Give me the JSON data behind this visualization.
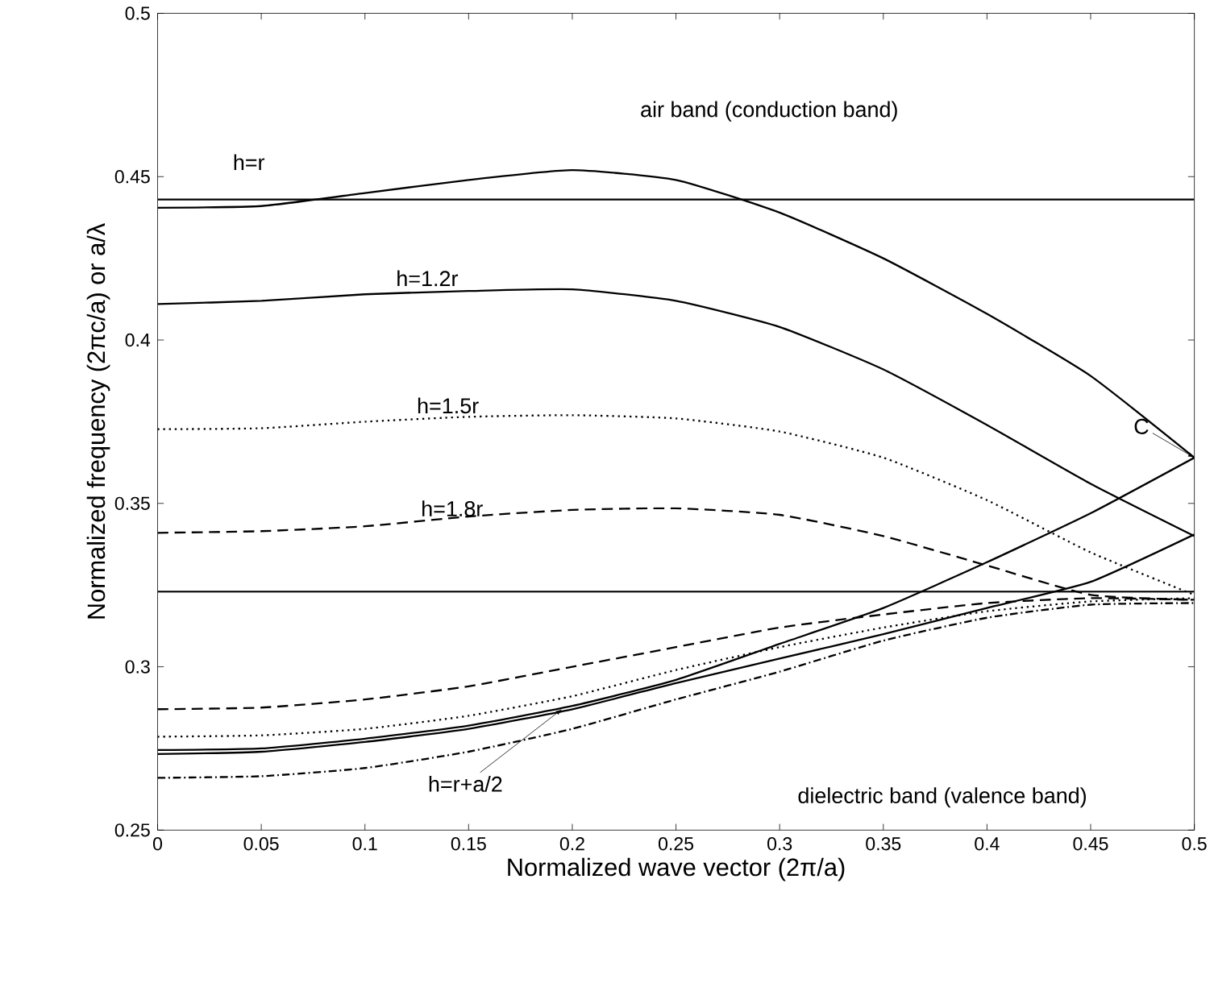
{
  "chart_data": {
    "type": "line",
    "xlabel": "Normalized wave vector (2π/a)",
    "ylabel": "Normalized frequency (2πc/a) or a/λ",
    "xlim": [
      0,
      0.5
    ],
    "ylim": [
      0.25,
      0.5
    ],
    "xticks": [
      0,
      0.05,
      0.1,
      0.15,
      0.2,
      0.25,
      0.3,
      0.35,
      0.4,
      0.45,
      0.5
    ],
    "yticks": [
      0.25,
      0.3,
      0.35,
      0.4,
      0.45,
      0.5
    ],
    "grid": false,
    "marker": "none",
    "series": [
      {
        "color": "#000000",
        "line_style": "solid",
        "x": [
          0,
          0.5
        ],
        "values": [
          0.443,
          0.443
        ]
      },
      {
        "color": "#000000",
        "line_style": "solid",
        "x": [
          0,
          0.5
        ],
        "values": [
          0.323,
          0.323
        ]
      },
      {
        "color": "#000000",
        "line_style": "solid",
        "x": [
          0,
          0.05,
          0.1,
          0.15,
          0.2,
          0.25,
          0.3,
          0.35,
          0.4,
          0.45,
          0.5
        ],
        "values": [
          0.4405,
          0.441,
          0.445,
          0.449,
          0.452,
          0.449,
          0.439,
          0.425,
          0.408,
          0.389,
          0.364
        ]
      },
      {
        "color": "#000000",
        "line_style": "solid",
        "x": [
          0,
          0.05,
          0.1,
          0.15,
          0.2,
          0.25,
          0.3,
          0.35,
          0.4,
          0.45,
          0.5
        ],
        "values": [
          0.411,
          0.412,
          0.414,
          0.415,
          0.4155,
          0.412,
          0.404,
          0.391,
          0.374,
          0.356,
          0.34
        ]
      },
      {
        "color": "#000000",
        "line_style": "dotted",
        "x": [
          0,
          0.05,
          0.1,
          0.15,
          0.2,
          0.25,
          0.3,
          0.35,
          0.4,
          0.45,
          0.5
        ],
        "values": [
          0.3727,
          0.373,
          0.375,
          0.3765,
          0.377,
          0.376,
          0.372,
          0.364,
          0.351,
          0.335,
          0.322
        ]
      },
      {
        "color": "#000000",
        "line_style": "dashed",
        "x": [
          0,
          0.05,
          0.1,
          0.15,
          0.2,
          0.25,
          0.3,
          0.35,
          0.4,
          0.45,
          0.5
        ],
        "values": [
          0.341,
          0.3415,
          0.343,
          0.346,
          0.348,
          0.3485,
          0.3465,
          0.34,
          0.331,
          0.322,
          0.3205
        ]
      },
      {
        "color": "#000000",
        "line_style": "dashed",
        "x": [
          0,
          0.05,
          0.1,
          0.15,
          0.2,
          0.25,
          0.3,
          0.35,
          0.4,
          0.45,
          0.5
        ],
        "values": [
          0.287,
          0.2875,
          0.29,
          0.294,
          0.3,
          0.306,
          0.312,
          0.316,
          0.3195,
          0.321,
          0.3205
        ]
      },
      {
        "color": "#000000",
        "line_style": "dotted",
        "x": [
          0,
          0.05,
          0.1,
          0.15,
          0.2,
          0.25,
          0.3,
          0.35,
          0.4,
          0.45,
          0.5
        ],
        "values": [
          0.2786,
          0.279,
          0.281,
          0.285,
          0.291,
          0.299,
          0.306,
          0.312,
          0.317,
          0.32,
          0.321
        ]
      },
      {
        "color": "#000000",
        "line_style": "solid",
        "x": [
          0,
          0.05,
          0.1,
          0.15,
          0.2,
          0.25,
          0.3,
          0.35,
          0.4,
          0.45,
          0.5
        ],
        "values": [
          0.2745,
          0.275,
          0.278,
          0.282,
          0.288,
          0.296,
          0.307,
          0.318,
          0.332,
          0.347,
          0.364
        ]
      },
      {
        "color": "#000000",
        "line_style": "solid",
        "x": [
          0,
          0.05,
          0.1,
          0.15,
          0.2,
          0.25,
          0.3,
          0.35,
          0.4,
          0.45,
          0.5
        ],
        "values": [
          0.2733,
          0.274,
          0.277,
          0.281,
          0.287,
          0.295,
          0.3025,
          0.31,
          0.318,
          0.326,
          0.3405
        ]
      },
      {
        "color": "#000000",
        "line_style": "dashdot",
        "x": [
          0,
          0.05,
          0.1,
          0.15,
          0.2,
          0.25,
          0.3,
          0.35,
          0.4,
          0.45,
          0.5
        ],
        "values": [
          0.266,
          0.2665,
          0.269,
          0.274,
          0.281,
          0.29,
          0.2985,
          0.308,
          0.315,
          0.319,
          0.3195
        ]
      }
    ],
    "annotations": [
      "air band (conduction band)",
      "dielectric band (valence band)",
      {
        "text": "h=r",
        "x": 0.044,
        "y": 0.441
      },
      {
        "text": "h=1.2r",
        "x": 0.13,
        "y": 0.4145
      },
      {
        "text": "h=1.5r",
        "x": 0.14,
        "y": 0.3755
      },
      {
        "text": "h=1.8r",
        "x": 0.142,
        "y": 0.344
      },
      {
        "text": "C",
        "x": 0.5,
        "y": 0.364
      },
      {
        "text": "h=r+a/2",
        "x": 0.195,
        "y": 0.287
      }
    ]
  }
}
